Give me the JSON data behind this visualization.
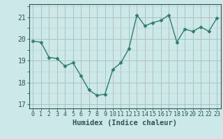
{
  "x": [
    0,
    1,
    2,
    3,
    4,
    5,
    6,
    7,
    8,
    9,
    10,
    11,
    12,
    13,
    14,
    15,
    16,
    17,
    18,
    19,
    20,
    21,
    22,
    23
  ],
  "y": [
    19.9,
    19.85,
    19.15,
    19.1,
    18.75,
    18.9,
    18.3,
    17.65,
    17.4,
    17.45,
    18.6,
    18.9,
    19.55,
    21.1,
    20.6,
    20.75,
    20.85,
    21.1,
    19.85,
    20.45,
    20.35,
    20.55,
    20.35,
    20.95
  ],
  "line_color": "#2d7d6e",
  "marker": "D",
  "marker_size": 2.5,
  "bg_color": "#cce8e8",
  "grid_minor_color": "#bbcccc",
  "grid_major_color": "#aabbbb",
  "xlabel": "Humidex (Indice chaleur)",
  "ylim": [
    16.8,
    21.6
  ],
  "xlim": [
    -0.5,
    23.5
  ],
  "yticks": [
    17,
    18,
    19,
    20,
    21
  ],
  "xticks": [
    0,
    1,
    2,
    3,
    4,
    5,
    6,
    7,
    8,
    9,
    10,
    11,
    12,
    13,
    14,
    15,
    16,
    17,
    18,
    19,
    20,
    21,
    22,
    23
  ],
  "font_color": "#2d5555",
  "linewidth": 1.0,
  "xlabel_fontsize": 7.5,
  "tick_fontsize": 6.0,
  "ytick_fontsize": 7.0
}
